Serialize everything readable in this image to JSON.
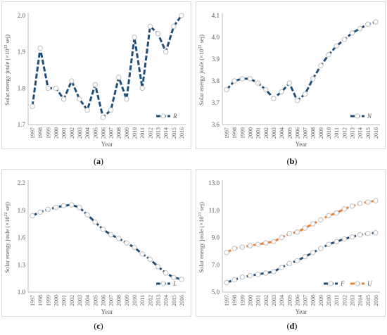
{
  "chart_data": [
    {
      "id": "a",
      "type": "line",
      "caption_letter": "a",
      "x": [
        "1997",
        "1998",
        "1999",
        "2000",
        "2001",
        "2002",
        "2003",
        "2004",
        "2005",
        "2006",
        "2007",
        "2008",
        "2009",
        "2010",
        "2011",
        "2012",
        "2013",
        "2014",
        "2015",
        "2016"
      ],
      "series": [
        {
          "name": "R",
          "color": "#1f4e79",
          "values": [
            1.75,
            1.91,
            1.8,
            1.8,
            1.77,
            1.82,
            1.77,
            1.74,
            1.81,
            1.72,
            1.74,
            1.83,
            1.77,
            1.94,
            1.8,
            1.97,
            1.95,
            1.9,
            1.97,
            2.0
          ]
        }
      ],
      "xlabel": "Year",
      "ylabel": "Solar energy joule (×10",
      "ylabel_sup": "22",
      "ylabel_unit": " sej)",
      "ylim": [
        1.7,
        2.0
      ],
      "yticks": [
        "1.7",
        "1.8",
        "1.9",
        "2.0"
      ],
      "ytick_values": [
        1.7,
        1.8,
        1.9,
        2.0
      ],
      "legend_position": "bottom-right",
      "grid": false
    },
    {
      "id": "b",
      "type": "line",
      "caption_letter": "b",
      "x": [
        "1997",
        "1998",
        "1999",
        "2000",
        "2001",
        "2002",
        "2003",
        "2004",
        "2005",
        "2006",
        "2007",
        "2008",
        "2009",
        "2010",
        "2011",
        "2012",
        "2013",
        "2014",
        "2015",
        "2016"
      ],
      "series": [
        {
          "name": "N",
          "color": "#1f4e79",
          "values": [
            3.76,
            3.8,
            3.81,
            3.81,
            3.79,
            3.76,
            3.72,
            3.75,
            3.79,
            3.71,
            3.74,
            3.81,
            3.87,
            3.92,
            3.96,
            3.99,
            4.02,
            4.04,
            4.06,
            4.07
          ]
        }
      ],
      "xlabel": "Year",
      "ylabel": "Solar energy joule (×10",
      "ylabel_sup": "22",
      "ylabel_unit": " sej)",
      "ylim": [
        3.6,
        4.1
      ],
      "yticks": [
        "3.6",
        "3.7",
        "3.8",
        "3.9",
        "4.0",
        "4.1"
      ],
      "ytick_values": [
        3.6,
        3.7,
        3.8,
        3.9,
        4.0,
        4.1
      ],
      "legend_position": "bottom-right",
      "grid": false
    },
    {
      "id": "c",
      "type": "line",
      "caption_letter": "c",
      "x": [
        "1997",
        "1998",
        "1999",
        "2000",
        "2001",
        "2002",
        "2003",
        "2004",
        "2005",
        "2006",
        "2007",
        "2008",
        "2009",
        "2010",
        "2011",
        "2012",
        "2013",
        "2014",
        "2015",
        "2016"
      ],
      "series": [
        {
          "name": "L",
          "color": "#1f4e79",
          "values": [
            1.84,
            1.88,
            1.91,
            1.93,
            1.95,
            1.96,
            1.93,
            1.85,
            1.77,
            1.69,
            1.63,
            1.59,
            1.54,
            1.49,
            1.42,
            1.36,
            1.28,
            1.21,
            1.16,
            1.14
          ]
        }
      ],
      "xlabel": "Year",
      "ylabel": "Solar energy joule (×10",
      "ylabel_sup": "22",
      "ylabel_unit": " sej)",
      "ylim": [
        1.0,
        2.2
      ],
      "yticks": [
        "1.0",
        "1.3",
        "1.6",
        "1.9",
        "2.2"
      ],
      "ytick_values": [
        1.0,
        1.3,
        1.6,
        1.9,
        2.2
      ],
      "legend_position": "bottom-right",
      "grid": false
    },
    {
      "id": "d",
      "type": "line",
      "caption_letter": "d",
      "x": [
        "1997",
        "1998",
        "1999",
        "2000",
        "2001",
        "2002",
        "2003",
        "2004",
        "2005",
        "2006",
        "2007",
        "2008",
        "2009",
        "2010",
        "2011",
        "2012",
        "2013",
        "2014",
        "2015",
        "2016"
      ],
      "series": [
        {
          "name": "F",
          "color": "#1f4e79",
          "values": [
            5.7,
            5.9,
            6.1,
            6.2,
            6.3,
            6.4,
            6.5,
            6.8,
            7.1,
            7.3,
            7.6,
            7.9,
            8.2,
            8.5,
            8.7,
            8.9,
            9.05,
            9.2,
            9.3,
            9.35
          ]
        },
        {
          "name": "U",
          "color": "#ed7d31",
          "values": [
            7.9,
            8.2,
            8.3,
            8.4,
            8.5,
            8.6,
            8.7,
            9.0,
            9.3,
            9.4,
            9.7,
            10.0,
            10.3,
            10.6,
            10.8,
            11.1,
            11.3,
            11.5,
            11.6,
            11.7
          ]
        }
      ],
      "xlabel": "Year",
      "ylabel": "Solar energy joule (×10",
      "ylabel_sup": "23",
      "ylabel_unit": " sej)",
      "ylim": [
        5.0,
        13.0
      ],
      "yticks": [
        "5.0",
        "7.0",
        "9.0",
        "11.0",
        "13.0"
      ],
      "ytick_values": [
        5.0,
        7.0,
        9.0,
        11.0,
        13.0
      ],
      "legend_position": "bottom-right",
      "grid": false
    }
  ]
}
